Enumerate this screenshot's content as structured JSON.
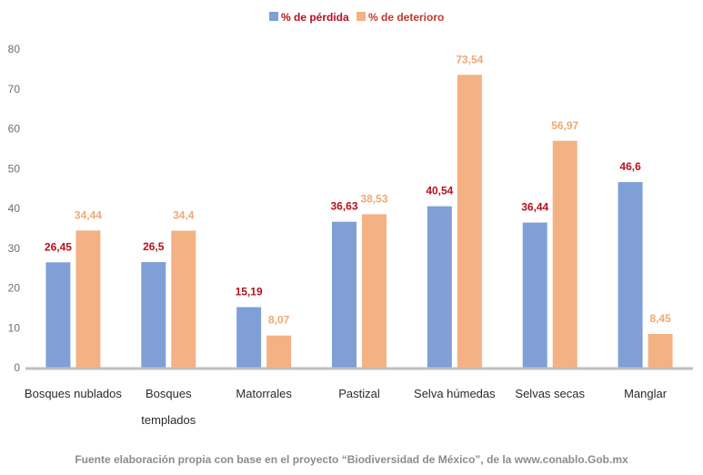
{
  "chart_data": {
    "type": "bar",
    "categories": [
      [
        "Bosques nublados"
      ],
      [
        "Bosques",
        "templados"
      ],
      [
        "Matorrales"
      ],
      [
        "Pastizal"
      ],
      [
        "Selva húmedas"
      ],
      [
        "Selvas secas"
      ],
      [
        "Manglar"
      ]
    ],
    "series": [
      {
        "name": "% de pérdida",
        "values": [
          26.45,
          26.5,
          15.19,
          36.63,
          40.54,
          36.44,
          46.6
        ],
        "labels": [
          "26,45",
          "26,5",
          "15,19",
          "36,63",
          "40,54",
          "36,44",
          "46,6"
        ]
      },
      {
        "name": "% de deterioro",
        "values": [
          34.44,
          34.4,
          8.07,
          38.53,
          73.54,
          56.97,
          8.45
        ],
        "labels": [
          "34,44",
          "34,4",
          "8,07",
          "38,53",
          "73,54",
          "56,97",
          "8,45"
        ]
      }
    ],
    "ylim": [
      0,
      80
    ],
    "yticks": [
      0,
      10,
      20,
      30,
      40,
      50,
      60,
      70,
      80
    ],
    "legend_position": "top-center",
    "grid": false,
    "colors": {
      "perdida": "#7f9fd6",
      "deterioro": "#f4b183",
      "label_perdida": "#b8101f",
      "label_deterioro": "#f0a874",
      "axis": "#bfbfbf"
    }
  },
  "source_text": "Fuente elaboración propia con base en el proyecto “Biodiversidad de México”, de la www.conablo.Gob.mx"
}
